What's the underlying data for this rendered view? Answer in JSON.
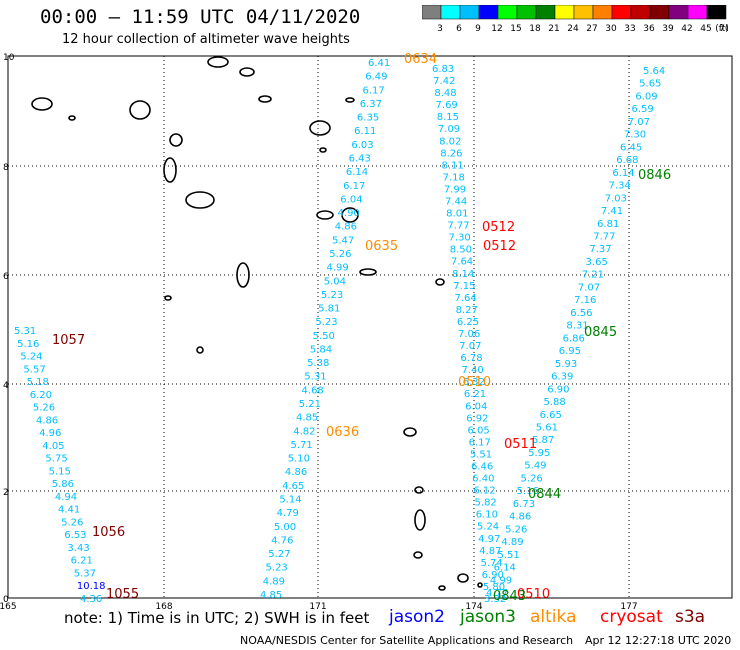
{
  "header": {
    "title": "00:00 – 11:59 UTC 04/11/2020",
    "subtitle": "12 hour collection of altimeter wave heights"
  },
  "legend": {
    "labels": [
      "3",
      "6",
      "9",
      "12",
      "15",
      "18",
      "21",
      "24",
      "27",
      "30",
      "33",
      "36",
      "39",
      "42",
      "45",
      "70",
      "(ft)"
    ],
    "colors": [
      "#7f7f7f",
      "#00ffff",
      "#00bfff",
      "#0000ff",
      "#00ff00",
      "#00c000",
      "#008000",
      "#ffff00",
      "#ffc000",
      "#ff8000",
      "#ff0000",
      "#c00000",
      "#800000",
      "#800080",
      "#ff00ff",
      "#000000"
    ]
  },
  "axes": {
    "y_labels": [
      "10",
      "8",
      "6",
      "4",
      "2",
      "0"
    ],
    "x_labels": [
      "165",
      "168",
      "171",
      "174",
      "177"
    ]
  },
  "tracks": [
    {
      "name": "left",
      "color": "#00bfff",
      "values": [
        "5.31",
        "5.16",
        "5.24",
        "5.57",
        "5.18",
        "6.20",
        "5.26",
        "4.86",
        "4.96",
        "4.05",
        "5.75",
        "5.15",
        "5.86",
        "4.94",
        "4.41",
        "5.26",
        "6.53",
        "3.43",
        "6.21",
        "5.37",
        "10.18",
        "4.36"
      ]
    },
    {
      "name": "middle",
      "color": "#00bfff",
      "values": [
        "6.41",
        "6.49",
        "6.17",
        "6.37",
        "6.35",
        "6.11",
        "6.03",
        "6.43",
        "6.14",
        "6.17",
        "6.04",
        "4.90",
        "4.86",
        "5.47",
        "5.26",
        "4.99",
        "5.04",
        "5.23",
        "5.81",
        "5.23",
        "5.50",
        "5.84",
        "5.38",
        "5.31",
        "4.68",
        "5.21",
        "4.85",
        "4.82",
        "5.71",
        "5.10",
        "4.86",
        "4.65",
        "5.14",
        "4.79",
        "5.00",
        "4.76",
        "5.27",
        "5.23",
        "4.89",
        "4.85"
      ]
    },
    {
      "name": "center",
      "color": "#00bfff",
      "values": [
        "6.83",
        "7.42",
        "8.48",
        "7.69",
        "8.15",
        "7.09",
        "8.02",
        "8.26",
        "8.11",
        "7.18",
        "7.99",
        "7.44",
        "8.01",
        "7.77",
        "7.30",
        "8.50",
        "7.64",
        "8.14",
        "7.15",
        "7.64",
        "8.27",
        "6.25",
        "7.06",
        "7.07",
        "6.78",
        "7.40",
        "6.32",
        "6.21",
        "6.04",
        "6.92",
        "6.05",
        "6.17",
        "5.51",
        "6.46",
        "6.40",
        "6.12",
        "5.82",
        "6.10",
        "5.24",
        "4.97",
        "4.87",
        "5.74",
        "6.90",
        "5.80",
        "3.32"
      ]
    },
    {
      "name": "right",
      "color": "#00bfff",
      "values": [
        "5.64",
        "5.65",
        "6.09",
        "6.59",
        "7.07",
        "7.30",
        "6.45",
        "6.68",
        "6.14",
        "7.34",
        "7.03",
        "7.41",
        "6.81",
        "7.77",
        "7.37",
        "3.65",
        "7.21",
        "7.07",
        "7.16",
        "6.56",
        "8.31",
        "6.86",
        "6.95",
        "5.93",
        "6.39",
        "6.90",
        "5.88",
        "6.65",
        "5.61",
        "5.87",
        "5.95",
        "5.49",
        "5.26",
        "5.16",
        "6.73",
        "4.86",
        "5.26",
        "4.89",
        "5.51",
        "6.14",
        "4.99",
        "4.77"
      ]
    }
  ],
  "time_labels": [
    {
      "text": "0634",
      "color": "#ff8c00"
    },
    {
      "text": "0635",
      "color": "#ff8c00"
    },
    {
      "text": "0636",
      "color": "#ff8c00"
    },
    {
      "text": "0512",
      "color": "#ff0000"
    },
    {
      "text": "0512",
      "color": "#ff0000"
    },
    {
      "text": "0511",
      "color": "#ff0000"
    },
    {
      "text": "0510",
      "color": "#ff0000"
    },
    {
      "text": "0510",
      "color": "#ff8c00"
    },
    {
      "text": "0846",
      "color": "#008000"
    },
    {
      "text": "0845",
      "color": "#008000"
    },
    {
      "text": "0844",
      "color": "#008000"
    },
    {
      "text": "0843",
      "color": "#008000"
    },
    {
      "text": "1057",
      "color": "#800000"
    },
    {
      "text": "1056",
      "color": "#800000"
    },
    {
      "text": "1055",
      "color": "#800000"
    }
  ],
  "footer": {
    "note": "note:  1) Time is in UTC;  2) SWH is in feet",
    "satellites": [
      {
        "name": "jason2",
        "color": "#0000ff"
      },
      {
        "name": "jason3",
        "color": "#008000"
      },
      {
        "name": "altika",
        "color": "#ff8c00"
      },
      {
        "name": "cryosat",
        "color": "#ff0000"
      },
      {
        "name": "s3a",
        "color": "#800000"
      }
    ],
    "credit": "NOAA/NESDIS Center for Satellite Applications and Research",
    "timestamp": "Apr 12 12:27:18 UTC 2020"
  }
}
